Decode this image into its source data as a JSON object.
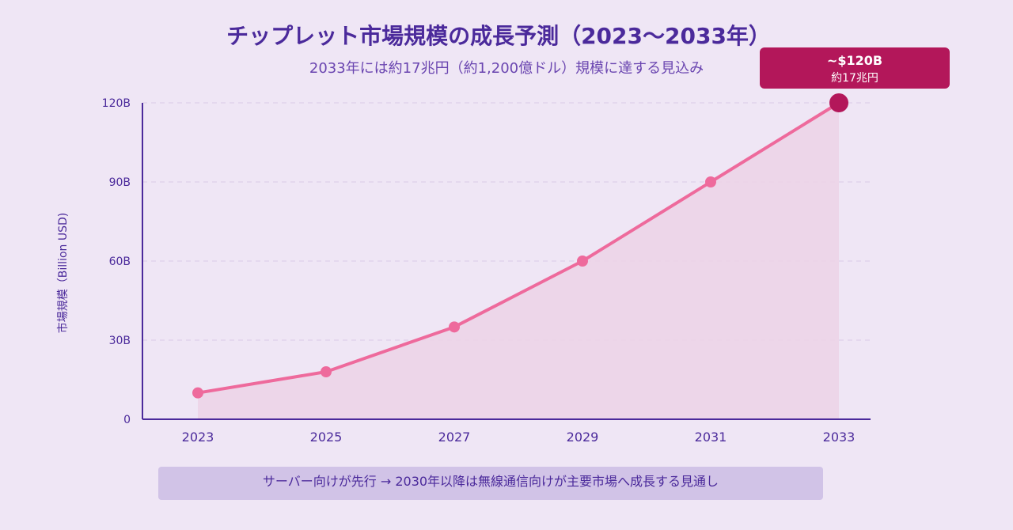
{
  "chart_data": {
    "type": "line",
    "title": "チップレット市場規模の成長予測（2023〜2033年）",
    "subtitle": "2033年には約17兆円（約1,200億ドル）規模に達する見込み",
    "xlabel": "",
    "ylabel": "市場規模（Billion USD)",
    "x": [
      "2023",
      "2025",
      "2027",
      "2029",
      "2031",
      "2033"
    ],
    "x_numeric": [
      2023,
      2025,
      2027,
      2029,
      2031,
      2033
    ],
    "series": [
      {
        "values": [
          10,
          18,
          35,
          60,
          90,
          120
        ]
      }
    ],
    "ylim": [
      0,
      120
    ],
    "yticks": [
      0,
      30,
      60,
      90,
      120
    ],
    "ytick_labels": [
      "0",
      "30B",
      "60B",
      "90B",
      "120B"
    ],
    "grid": true,
    "area_fill": true,
    "colors": {
      "line": "#ee6a9c",
      "area": "#ecd2e6",
      "axis": "#4b2a9b",
      "grid": "#d9c9e8",
      "highlight": "#b3175a"
    },
    "annotation": {
      "value_label": "~$120B",
      "sub_label": "約17兆円"
    }
  },
  "footer_note": "サーバー向けが先行 → 2030年以降は無線通信向けが主要市場へ成長する見通し"
}
